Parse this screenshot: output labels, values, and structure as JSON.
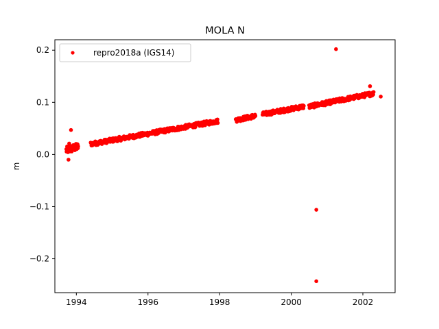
{
  "chart_data": {
    "type": "scatter",
    "title": "MOLA N",
    "xlabel": "",
    "ylabel": "m",
    "xlim": [
      1993.4,
      2002.9
    ],
    "ylim": [
      -0.265,
      0.22
    ],
    "xticks": [
      1994,
      1996,
      1998,
      2000,
      2002
    ],
    "yticks": [
      -0.2,
      -0.1,
      0.0,
      0.1,
      0.2
    ],
    "xtick_labels": [
      "1994",
      "1996",
      "1998",
      "2000",
      "2002"
    ],
    "ytick_labels": [
      "−0.2",
      "−0.1",
      "0.0",
      "0.1",
      "0.2"
    ],
    "grid": false,
    "legend_position": "top-left",
    "series": [
      {
        "name": "repro2018a (IGS14)",
        "color": "#ff0000",
        "marker": "circle",
        "segments": [
          {
            "x_start": 1993.72,
            "x_end": 1994.05,
            "y_start": 0.008,
            "y_end": 0.015,
            "spread": 0.007,
            "count": 45
          },
          {
            "x_start": 1994.4,
            "x_end": 1997.95,
            "y_start": 0.02,
            "y_end": 0.064,
            "spread": 0.004,
            "count": 330
          },
          {
            "x_start": 1998.45,
            "x_end": 1999.0,
            "y_start": 0.066,
            "y_end": 0.074,
            "spread": 0.004,
            "count": 55
          },
          {
            "x_start": 1999.2,
            "x_end": 2000.35,
            "y_start": 0.077,
            "y_end": 0.092,
            "spread": 0.004,
            "count": 110
          },
          {
            "x_start": 2000.5,
            "x_end": 2002.3,
            "y_start": 0.092,
            "y_end": 0.117,
            "spread": 0.004,
            "count": 170
          }
        ],
        "outliers": [
          {
            "x": 1993.78,
            "y": -0.01
          },
          {
            "x": 1993.85,
            "y": 0.047
          },
          {
            "x": 1993.8,
            "y": 0.021
          },
          {
            "x": 2000.7,
            "y": -0.106
          },
          {
            "x": 2000.7,
            "y": -0.243
          },
          {
            "x": 2001.25,
            "y": 0.202
          },
          {
            "x": 2002.2,
            "y": 0.131
          },
          {
            "x": 2002.5,
            "y": 0.111
          }
        ]
      }
    ]
  }
}
